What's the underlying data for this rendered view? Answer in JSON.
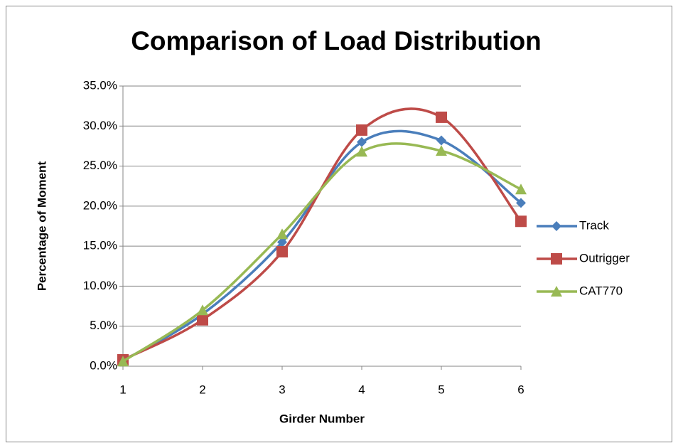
{
  "chart_data": {
    "type": "line",
    "title": "Comparison of Load Distribution",
    "x_label": "Girder Number",
    "y_label": "Percentage of Moment",
    "x": [
      1,
      2,
      3,
      4,
      5,
      6
    ],
    "xlim": [
      1,
      6
    ],
    "xticks": [
      1,
      2,
      3,
      4,
      5,
      6
    ],
    "ylim": [
      0,
      35
    ],
    "yticks": [
      {
        "value": 0,
        "label": "0.0%"
      },
      {
        "value": 5,
        "label": "5.0%"
      },
      {
        "value": 10,
        "label": "10.0%"
      },
      {
        "value": 15,
        "label": "15.0%"
      },
      {
        "value": 20,
        "label": "20.0%"
      },
      {
        "value": 25,
        "label": "25.0%"
      },
      {
        "value": 30,
        "label": "30.0%"
      },
      {
        "value": 35,
        "label": "35.0%"
      }
    ],
    "grid": true,
    "smooth": true,
    "legend": "right",
    "series": [
      {
        "name": "Track",
        "color": "#4a7ebb",
        "marker": "diamond",
        "values": [
          0.7,
          6.5,
          15.5,
          28.0,
          28.2,
          20.4
        ]
      },
      {
        "name": "Outrigger",
        "color": "#be4b48",
        "marker": "square",
        "values": [
          0.8,
          5.8,
          14.3,
          29.5,
          31.1,
          18.1
        ]
      },
      {
        "name": "CAT770",
        "color": "#98b954",
        "marker": "triangle",
        "values": [
          0.6,
          7.0,
          16.5,
          26.8,
          26.9,
          22.1
        ]
      }
    ]
  }
}
